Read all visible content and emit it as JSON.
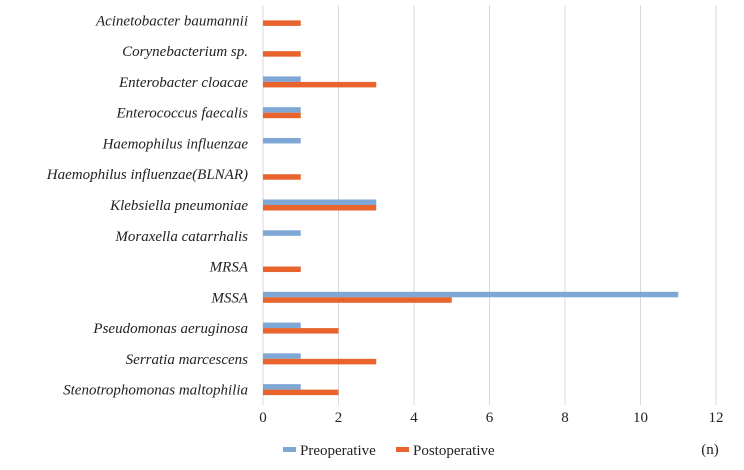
{
  "chart_data": {
    "type": "bar",
    "orientation": "horizontal",
    "categories": [
      "Acinetobacter baumannii",
      "Corynebacterium sp.",
      "Enterobacter cloacae",
      "Enterococcus faecalis",
      "Haemophilus influenzae",
      "Haemophilus influenzae(BLNAR)",
      "Klebsiella pneumoniae",
      "Moraxella catarrhalis",
      "MRSA",
      "MSSA",
      "Pseudomonas aeruginosa",
      "Serratia marcescens",
      "Stenotrophomonas maltophilia"
    ],
    "series": [
      {
        "name": "Preoperative",
        "color": "#7fa7d6",
        "values": [
          0,
          0,
          1,
          1,
          1,
          0,
          3,
          1,
          0,
          11,
          1,
          1,
          1
        ]
      },
      {
        "name": "Postoperative",
        "color": "#e8642c",
        "values": [
          1,
          1,
          3,
          1,
          0,
          1,
          3,
          0,
          1,
          5,
          2,
          3,
          2
        ]
      }
    ],
    "xlim": [
      0,
      12
    ],
    "xticks": [
      0,
      2,
      4,
      6,
      8,
      10,
      12
    ],
    "x_unit_label": "(n)",
    "grid": "vertical",
    "legend_position": "bottom"
  }
}
